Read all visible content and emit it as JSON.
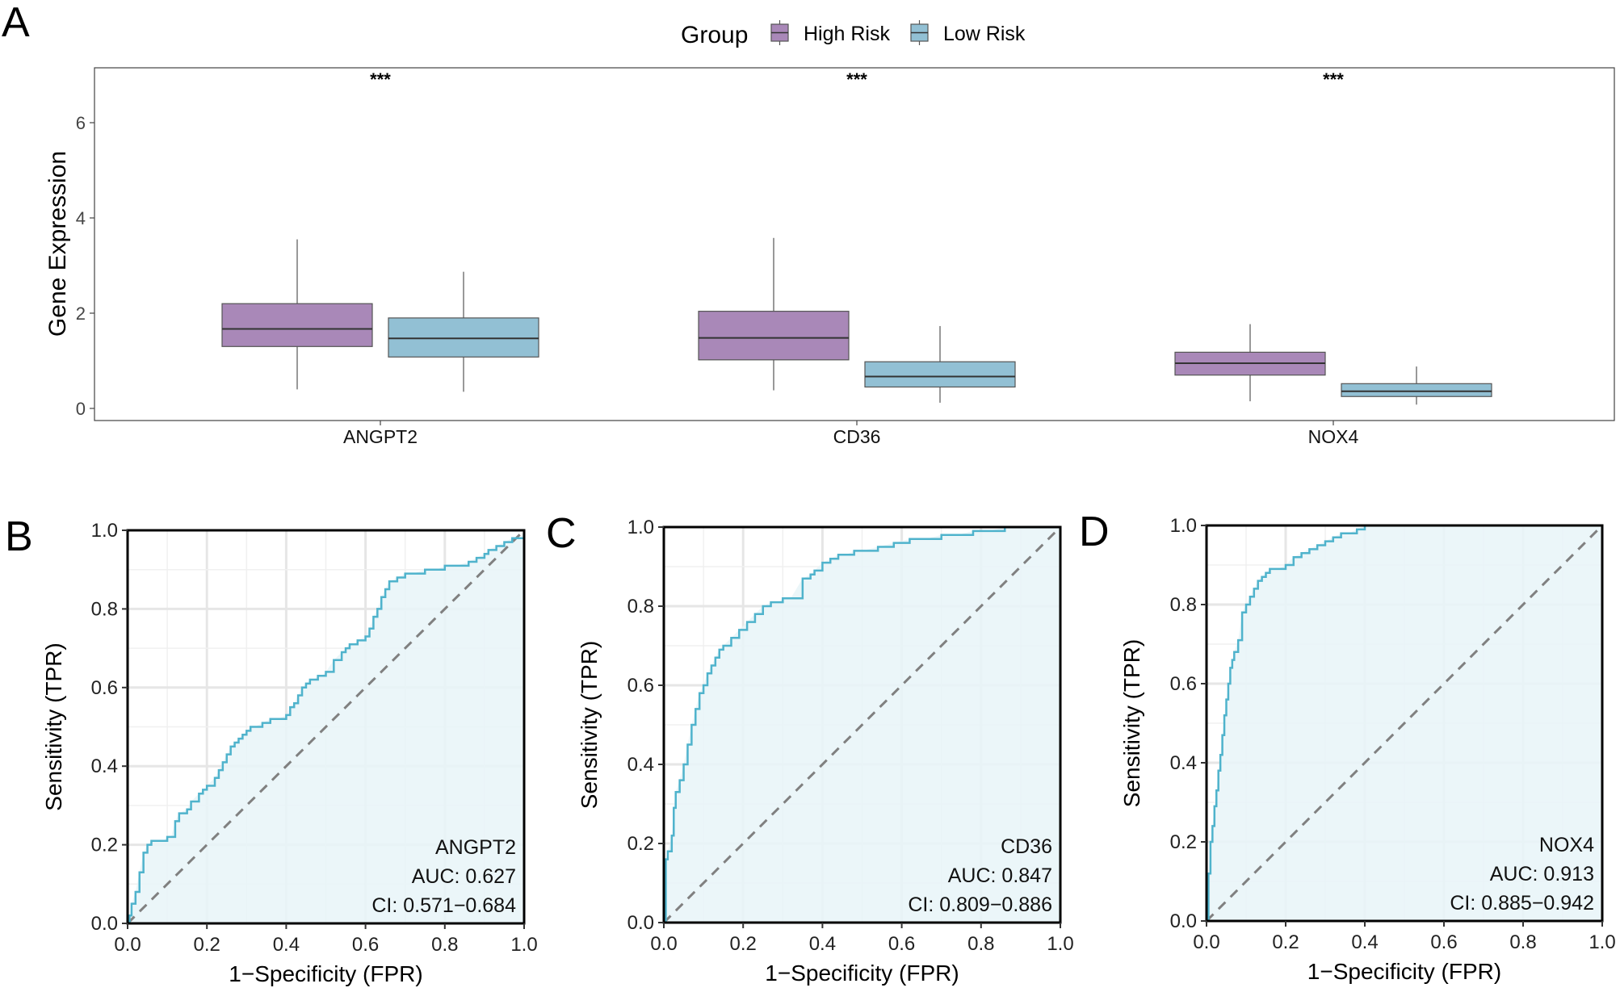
{
  "colors": {
    "high_risk": "#a988b8",
    "low_risk": "#92c0d4",
    "roc_line": "#4fb3cc",
    "roc_fill": "#e8f5f8",
    "diagonal": "#808080",
    "grid": "#e6e6e6"
  },
  "chart_data": [
    {
      "panel": "A",
      "type": "boxplot",
      "ylabel": "Gene Expression",
      "ylim": [
        -0.25,
        7.1
      ],
      "yticks": [
        "0",
        "2",
        "4",
        "6"
      ],
      "legend": {
        "title": "Group",
        "position": "top",
        "entries": [
          "High Risk",
          "Low Risk"
        ]
      },
      "categories": [
        "ANGPT2",
        "CD36",
        "NOX4"
      ],
      "significance": [
        "***",
        "***",
        "***"
      ],
      "series": [
        {
          "name": "High Risk",
          "boxes": [
            {
              "min": 0.4,
              "q1": 1.3,
              "median": 1.67,
              "q3": 2.2,
              "max": 3.55
            },
            {
              "min": 0.38,
              "q1": 1.02,
              "median": 1.48,
              "q3": 2.04,
              "max": 3.58
            },
            {
              "min": 0.15,
              "q1": 0.7,
              "median": 0.95,
              "q3": 1.18,
              "max": 1.77
            }
          ]
        },
        {
          "name": "Low Risk",
          "boxes": [
            {
              "min": 0.35,
              "q1": 1.08,
              "median": 1.47,
              "q3": 1.9,
              "max": 2.87
            },
            {
              "min": 0.12,
              "q1": 0.45,
              "median": 0.67,
              "q3": 0.98,
              "max": 1.73
            },
            {
              "min": 0.08,
              "q1": 0.25,
              "median": 0.36,
              "q3": 0.52,
              "max": 0.88
            }
          ]
        }
      ]
    },
    {
      "panel": "B",
      "type": "line",
      "gene": "ANGPT2",
      "auc_label": "AUC: 0.627",
      "ci_label": "CI: 0.571−0.684",
      "xlabel": "1−Specificity (FPR)",
      "ylabel": "Sensitivity (TPR)",
      "xlim": [
        0,
        1
      ],
      "ylim": [
        0,
        1
      ],
      "ticks": [
        "0.0",
        "0.2",
        "0.4",
        "0.6",
        "0.8",
        "1.0"
      ],
      "x": [
        0,
        0.005,
        0.01,
        0.02,
        0.03,
        0.04,
        0.05,
        0.06,
        0.09,
        0.1,
        0.11,
        0.12,
        0.13,
        0.15,
        0.16,
        0.18,
        0.19,
        0.2,
        0.22,
        0.23,
        0.24,
        0.25,
        0.26,
        0.27,
        0.28,
        0.29,
        0.3,
        0.31,
        0.32,
        0.34,
        0.36,
        0.38,
        0.4,
        0.41,
        0.42,
        0.43,
        0.44,
        0.45,
        0.46,
        0.47,
        0.48,
        0.49,
        0.5,
        0.52,
        0.54,
        0.55,
        0.56,
        0.57,
        0.58,
        0.6,
        0.61,
        0.62,
        0.63,
        0.64,
        0.65,
        0.66,
        0.68,
        0.7,
        0.72,
        0.75,
        0.78,
        0.8,
        0.83,
        0.86,
        0.88,
        0.9,
        0.91,
        0.93,
        0.95,
        0.97,
        0.99,
        1.0
      ],
      "y": [
        0,
        0.02,
        0.05,
        0.08,
        0.13,
        0.18,
        0.2,
        0.21,
        0.21,
        0.22,
        0.22,
        0.26,
        0.28,
        0.29,
        0.31,
        0.33,
        0.34,
        0.35,
        0.37,
        0.39,
        0.41,
        0.43,
        0.45,
        0.46,
        0.47,
        0.48,
        0.49,
        0.5,
        0.5,
        0.51,
        0.52,
        0.52,
        0.53,
        0.55,
        0.56,
        0.58,
        0.6,
        0.61,
        0.62,
        0.62,
        0.63,
        0.63,
        0.64,
        0.67,
        0.69,
        0.7,
        0.71,
        0.71,
        0.72,
        0.73,
        0.75,
        0.78,
        0.8,
        0.83,
        0.85,
        0.87,
        0.88,
        0.89,
        0.89,
        0.9,
        0.9,
        0.91,
        0.91,
        0.92,
        0.93,
        0.94,
        0.95,
        0.96,
        0.97,
        0.98,
        0.98,
        1.0
      ]
    },
    {
      "panel": "C",
      "type": "line",
      "gene": "CD36",
      "auc_label": "AUC: 0.847",
      "ci_label": "CI: 0.809−0.886",
      "xlabel": "1−Specificity (FPR)",
      "ylabel": "Sensitivity (TPR)",
      "xlim": [
        0,
        1
      ],
      "ylim": [
        0,
        1
      ],
      "ticks": [
        "0.0",
        "0.2",
        "0.4",
        "0.6",
        "0.8",
        "1.0"
      ],
      "x": [
        0,
        0.005,
        0.01,
        0.02,
        0.025,
        0.03,
        0.04,
        0.05,
        0.06,
        0.07,
        0.08,
        0.09,
        0.1,
        0.11,
        0.12,
        0.13,
        0.14,
        0.15,
        0.17,
        0.19,
        0.21,
        0.23,
        0.25,
        0.27,
        0.29,
        0.3,
        0.32,
        0.35,
        0.37,
        0.38,
        0.4,
        0.42,
        0.44,
        0.46,
        0.48,
        0.5,
        0.54,
        0.58,
        0.62,
        0.66,
        0.7,
        0.74,
        0.78,
        0.82,
        0.86,
        0.9,
        0.94,
        0.97,
        1.0
      ],
      "y": [
        0,
        0.16,
        0.18,
        0.22,
        0.29,
        0.33,
        0.36,
        0.4,
        0.45,
        0.5,
        0.54,
        0.58,
        0.6,
        0.63,
        0.65,
        0.67,
        0.69,
        0.7,
        0.72,
        0.74,
        0.76,
        0.78,
        0.8,
        0.81,
        0.81,
        0.82,
        0.82,
        0.87,
        0.88,
        0.89,
        0.91,
        0.92,
        0.93,
        0.93,
        0.94,
        0.94,
        0.95,
        0.96,
        0.97,
        0.97,
        0.98,
        0.98,
        0.99,
        0.99,
        1.0,
        1.0,
        1.0,
        1.0,
        1.0
      ]
    },
    {
      "panel": "D",
      "type": "line",
      "gene": "NOX4",
      "auc_label": "AUC: 0.913",
      "ci_label": "CI: 0.885−0.942",
      "xlabel": "1−Specificity (FPR)",
      "ylabel": "Sensitivity (TPR)",
      "xlim": [
        0,
        1
      ],
      "ylim": [
        0,
        1
      ],
      "ticks": [
        "0.0",
        "0.2",
        "0.4",
        "0.6",
        "0.8",
        "1.0"
      ],
      "x": [
        0,
        0.005,
        0.01,
        0.015,
        0.02,
        0.025,
        0.03,
        0.035,
        0.04,
        0.045,
        0.05,
        0.055,
        0.06,
        0.065,
        0.07,
        0.08,
        0.09,
        0.1,
        0.11,
        0.12,
        0.13,
        0.14,
        0.15,
        0.16,
        0.17,
        0.18,
        0.2,
        0.22,
        0.24,
        0.26,
        0.28,
        0.3,
        0.32,
        0.34,
        0.36,
        0.38,
        0.4,
        0.45,
        0.5,
        0.6,
        0.7,
        0.8,
        0.9,
        1.0
      ],
      "y": [
        0,
        0.12,
        0.2,
        0.24,
        0.29,
        0.33,
        0.38,
        0.42,
        0.47,
        0.52,
        0.56,
        0.6,
        0.64,
        0.66,
        0.68,
        0.71,
        0.78,
        0.8,
        0.82,
        0.84,
        0.86,
        0.87,
        0.88,
        0.89,
        0.89,
        0.89,
        0.9,
        0.92,
        0.93,
        0.94,
        0.95,
        0.96,
        0.97,
        0.98,
        0.98,
        0.99,
        1.0,
        1.0,
        1.0,
        1.0,
        1.0,
        1.0,
        1.0,
        1.0
      ]
    }
  ]
}
